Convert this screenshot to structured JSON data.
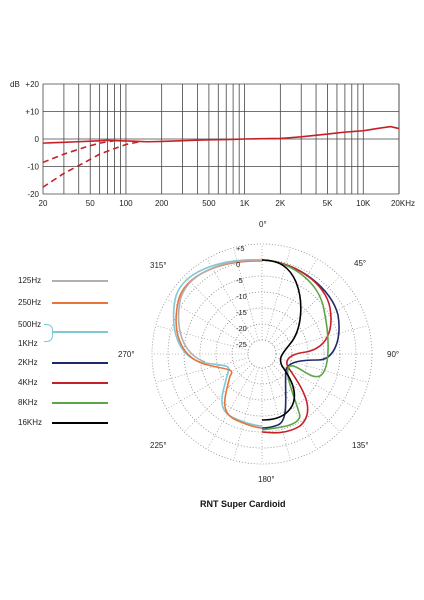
{
  "chart_data": [
    {
      "type": "line",
      "ylabel": "dB",
      "xscale": "log",
      "xlim": [
        20,
        20000
      ],
      "ylim": [
        -20,
        20
      ],
      "grid": true,
      "yticks": [
        "+20",
        "+10",
        "0",
        "-10",
        "-20"
      ],
      "xticks": [
        "20",
        "50",
        "100",
        "200",
        "500",
        "1K",
        "2K",
        "5K",
        "10K",
        "20KHz"
      ],
      "series": [
        {
          "style": "solid",
          "x": [
            20,
            30,
            50,
            70,
            100,
            150,
            200,
            300,
            500,
            700,
            1000,
            2000,
            3000,
            5000,
            7000,
            10000,
            13000,
            17000,
            20000
          ],
          "y": [
            -1.5,
            -1.2,
            -0.8,
            -0.5,
            -0.7,
            -1.0,
            -0.9,
            -0.6,
            -0.3,
            -0.2,
            0,
            0.2,
            0.8,
            1.8,
            2.5,
            3.0,
            3.8,
            4.5,
            3.8
          ]
        },
        {
          "style": "dashed",
          "x": [
            20,
            30,
            45,
            60,
            80
          ],
          "y": [
            -8.5,
            -5.5,
            -3.0,
            -1.5,
            -0.6
          ]
        },
        {
          "style": "dashed",
          "x": [
            20,
            30,
            45,
            60,
            80,
            100,
            130
          ],
          "y": [
            -17.5,
            -12.5,
            -8.5,
            -5.5,
            -3.5,
            -2.0,
            -1.0
          ]
        }
      ]
    },
    {
      "type": "polar",
      "title": "RNT Super Cardioid",
      "rticks": [
        "+5",
        "0",
        "-5",
        "-10",
        "-15",
        "-20",
        "-25"
      ],
      "angle_labels": [
        "0°",
        "45°",
        "90°",
        "135°",
        "180°",
        "225°",
        "270°",
        "315°"
      ],
      "series": [
        {
          "name": "125Hz",
          "color": "#b0b0b0"
        },
        {
          "name": "250Hz",
          "color": "#e8743b"
        },
        {
          "name": "500Hz",
          "name2": "1KHz",
          "color": "#7fc8d6"
        },
        {
          "name": "2KHz",
          "color": "#1f2a6b"
        },
        {
          "name": "4KHz",
          "color": "#c62027"
        },
        {
          "name": "8KHz",
          "color": "#5aa544"
        },
        {
          "name": "16KHz",
          "color": "#000000"
        }
      ]
    }
  ]
}
